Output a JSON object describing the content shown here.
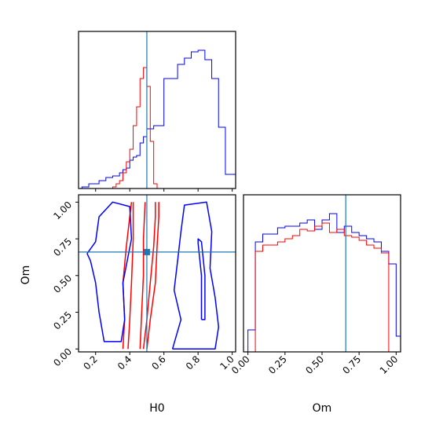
{
  "chart_data": {
    "type": "corner",
    "parameters": [
      "H0",
      "Om"
    ],
    "axis_labels": {
      "x_left": "H0",
      "x_right": "Om",
      "y_left": "Om"
    },
    "truth": {
      "H0": 0.5,
      "Om": 0.66
    },
    "colors": {
      "series_a": "#0000ff",
      "series_b": "#ff0000",
      "truth": "#1f77b4",
      "frame": "#000000"
    },
    "grid": false,
    "panels": [
      {
        "id": "H0-marginal",
        "type": "histogram-step",
        "x_range": [
          0.1,
          1.02
        ],
        "y_ticks_shown": false,
        "series": [
          {
            "color": "#0000ff",
            "bins": [
              [
                0.12,
                0.16
              ],
              [
                0.16,
                0.22
              ],
              [
                0.22,
                0.26
              ],
              [
                0.26,
                0.3
              ],
              [
                0.3,
                0.34
              ],
              [
                0.34,
                0.36
              ],
              [
                0.36,
                0.38
              ],
              [
                0.38,
                0.4
              ],
              [
                0.4,
                0.42
              ],
              [
                0.42,
                0.44
              ],
              [
                0.44,
                0.46
              ],
              [
                0.46,
                0.48
              ],
              [
                0.48,
                0.5
              ],
              [
                0.5,
                0.54
              ],
              [
                0.54,
                0.6
              ],
              [
                0.6,
                0.68
              ],
              [
                0.68,
                0.72
              ],
              [
                0.72,
                0.76
              ],
              [
                0.76,
                0.8
              ],
              [
                0.8,
                0.84
              ],
              [
                0.84,
                0.88
              ],
              [
                0.88,
                0.92
              ],
              [
                0.92,
                0.96
              ],
              [
                0.96,
                1.0
              ],
              [
                1.0,
                1.02
              ]
            ],
            "values": [
              0.01,
              0.03,
              0.05,
              0.07,
              0.08,
              0.1,
              0.12,
              0.13,
              0.18,
              0.2,
              0.21,
              0.29,
              0.33,
              0.38,
              0.4,
              0.7,
              0.79,
              0.83,
              0.87,
              0.88,
              0.82,
              0.7,
              0.39,
              0.09,
              0.09
            ]
          },
          {
            "color": "#ff0000",
            "bins": [
              [
                0.3,
                0.32
              ],
              [
                0.32,
                0.34
              ],
              [
                0.34,
                0.36
              ],
              [
                0.36,
                0.38
              ],
              [
                0.38,
                0.4
              ],
              [
                0.4,
                0.42
              ],
              [
                0.42,
                0.44
              ],
              [
                0.44,
                0.46
              ],
              [
                0.46,
                0.48
              ],
              [
                0.48,
                0.5
              ],
              [
                0.5,
                0.52
              ],
              [
                0.52,
                0.54
              ],
              [
                0.54,
                0.56
              ]
            ],
            "values": [
              0.01,
              0.03,
              0.05,
              0.1,
              0.17,
              0.25,
              0.4,
              0.52,
              0.7,
              0.77,
              0.65,
              0.3,
              0.03
            ]
          }
        ]
      },
      {
        "id": "H0-Om-contours",
        "type": "contour",
        "x_range": [
          0.1,
          1.02
        ],
        "y_range": [
          -0.02,
          1.05
        ],
        "x_ticks": [
          "0.2",
          "0.4",
          "0.6",
          "0.8",
          "1.0"
        ],
        "y_ticks": [
          "0.00",
          "0.25",
          "0.50",
          "0.75",
          "1.00"
        ],
        "contours": [
          {
            "color": "#ff0000",
            "points": [
              [
                0.36,
                0.0
              ],
              [
                0.37,
                0.2
              ],
              [
                0.36,
                0.45
              ],
              [
                0.38,
                0.7
              ],
              [
                0.4,
                0.9
              ],
              [
                0.41,
                1.0
              ]
            ]
          },
          {
            "color": "#ff0000",
            "points": [
              [
                0.39,
                0.0
              ],
              [
                0.4,
                0.2
              ],
              [
                0.41,
                0.45
              ],
              [
                0.42,
                0.75
              ],
              [
                0.42,
                1.0
              ]
            ]
          },
          {
            "color": "#ff0000",
            "points": [
              [
                0.46,
                0.0
              ],
              [
                0.47,
                0.25
              ],
              [
                0.48,
                0.5
              ],
              [
                0.48,
                0.75
              ],
              [
                0.49,
                1.0
              ]
            ]
          },
          {
            "color": "#ff0000",
            "points": [
              [
                0.48,
                0.0
              ],
              [
                0.5,
                0.2
              ],
              [
                0.52,
                0.45
              ],
              [
                0.54,
                0.7
              ],
              [
                0.55,
                0.9
              ],
              [
                0.55,
                1.0
              ]
            ]
          },
          {
            "color": "#ff0000",
            "points": [
              [
                0.5,
                0.0
              ],
              [
                0.52,
                0.2
              ],
              [
                0.55,
                0.45
              ],
              [
                0.56,
                0.7
              ],
              [
                0.57,
                0.9
              ],
              [
                0.57,
                1.0
              ]
            ]
          },
          {
            "color": "#0000ff",
            "points": [
              [
                0.15,
                0.65
              ],
              [
                0.2,
                0.73
              ],
              [
                0.22,
                0.9
              ],
              [
                0.3,
                1.0
              ],
              [
                0.4,
                0.97
              ],
              [
                0.41,
                0.75
              ],
              [
                0.36,
                0.45
              ],
              [
                0.37,
                0.2
              ],
              [
                0.35,
                0.05
              ],
              [
                0.25,
                0.05
              ],
              [
                0.22,
                0.25
              ],
              [
                0.2,
                0.45
              ],
              [
                0.17,
                0.6
              ],
              [
                0.15,
                0.65
              ]
            ]
          },
          {
            "color": "#0000ff",
            "points": [
              [
                0.65,
                0.0
              ],
              [
                0.7,
                0.2
              ],
              [
                0.66,
                0.4
              ],
              [
                0.68,
                0.6
              ],
              [
                0.7,
                0.8
              ],
              [
                0.72,
                0.98
              ],
              [
                0.85,
                1.0
              ],
              [
                0.88,
                0.8
              ],
              [
                0.87,
                0.55
              ],
              [
                0.9,
                0.35
              ],
              [
                0.92,
                0.15
              ],
              [
                0.9,
                0.0
              ],
              [
                0.65,
                0.0
              ]
            ]
          },
          {
            "color": "#0000ff",
            "points": [
              [
                0.82,
                0.2
              ],
              [
                0.82,
                0.5
              ],
              [
                0.8,
                0.72
              ],
              [
                0.8,
                0.75
              ],
              [
                0.82,
                0.73
              ],
              [
                0.84,
                0.5
              ],
              [
                0.84,
                0.2
              ],
              [
                0.82,
                0.2
              ]
            ]
          }
        ]
      },
      {
        "id": "Om-marginal",
        "type": "histogram-step",
        "x_range": [
          -0.03,
          1.03
        ],
        "x_ticks": [
          "0.00",
          "0.25",
          "0.50",
          "0.75",
          "1.00"
        ],
        "y_ticks_shown": false,
        "series": [
          {
            "color": "#0000ff",
            "bins": [
              [
                0.0,
                0.05
              ],
              [
                0.05,
                0.1
              ],
              [
                0.1,
                0.15
              ],
              [
                0.15,
                0.2
              ],
              [
                0.2,
                0.25
              ],
              [
                0.25,
                0.3
              ],
              [
                0.3,
                0.35
              ],
              [
                0.35,
                0.4
              ],
              [
                0.4,
                0.45
              ],
              [
                0.45,
                0.5
              ],
              [
                0.5,
                0.55
              ],
              [
                0.55,
                0.6
              ],
              [
                0.6,
                0.65
              ],
              [
                0.65,
                0.7
              ],
              [
                0.7,
                0.75
              ],
              [
                0.75,
                0.8
              ],
              [
                0.8,
                0.85
              ],
              [
                0.85,
                0.9
              ],
              [
                0.9,
                0.95
              ],
              [
                0.95,
                1.0
              ],
              [
                1.0,
                1.03
              ]
            ],
            "values": [
              0.14,
              0.7,
              0.75,
              0.75,
              0.79,
              0.8,
              0.8,
              0.82,
              0.84,
              0.78,
              0.84,
              0.88,
              0.76,
              0.8,
              0.76,
              0.74,
              0.72,
              0.7,
              0.64,
              0.56,
              0.1
            ]
          },
          {
            "color": "#ff0000",
            "bins": [
              [
                0.0,
                0.05
              ],
              [
                0.05,
                0.1
              ],
              [
                0.1,
                0.15
              ],
              [
                0.15,
                0.2
              ],
              [
                0.2,
                0.25
              ],
              [
                0.25,
                0.3
              ],
              [
                0.3,
                0.35
              ],
              [
                0.35,
                0.4
              ],
              [
                0.4,
                0.45
              ],
              [
                0.45,
                0.5
              ],
              [
                0.5,
                0.55
              ],
              [
                0.55,
                0.6
              ],
              [
                0.6,
                0.65
              ],
              [
                0.65,
                0.7
              ],
              [
                0.7,
                0.75
              ],
              [
                0.75,
                0.8
              ],
              [
                0.8,
                0.85
              ],
              [
                0.85,
                0.9
              ],
              [
                0.9,
                0.95
              ],
              [
                0.95,
                1.0
              ]
            ],
            "values": [
              0.0,
              0.64,
              0.68,
              0.68,
              0.7,
              0.72,
              0.74,
              0.78,
              0.77,
              0.8,
              0.82,
              0.76,
              0.78,
              0.74,
              0.73,
              0.71,
              0.68,
              0.66,
              0.63,
              0.0
            ]
          }
        ]
      }
    ]
  }
}
